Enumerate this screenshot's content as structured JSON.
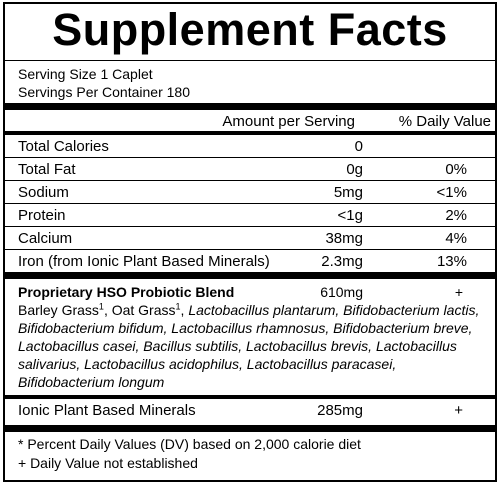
{
  "title": "Supplement Facts",
  "serving_size": "Serving Size 1 Caplet",
  "servings_per_container": "Servings Per Container  180",
  "header": {
    "amount": "Amount per Serving",
    "daily_value": "% Daily Value"
  },
  "rows": [
    {
      "name": "Total Calories",
      "amount": "0",
      "dv": ""
    },
    {
      "name": "Total Fat",
      "amount": "0g",
      "dv": "0%"
    },
    {
      "name": "Sodium",
      "amount": "5mg",
      "dv": "<1%"
    },
    {
      "name": "Protein",
      "amount": "<1g",
      "dv": "2%"
    },
    {
      "name": "Calcium",
      "amount": "38mg",
      "dv": "4%"
    },
    {
      "name": "Iron (from Ionic Plant Based Minerals)",
      "amount": "2.3mg",
      "dv": "13%"
    }
  ],
  "blend": {
    "name": "Proprietary HSO Probiotic Blend",
    "amount": "610mg",
    "dv": "+",
    "ingredients": [
      {
        "text": "Barley Grass",
        "sup": "1"
      },
      {
        "text": ", Oat Grass",
        "sup": "1"
      },
      {
        "text": ", "
      },
      {
        "text": "Lactobacillus plantarum, Bifidobacterium lactis, Bifidobacterium bifidum, Lactobacillus rhamnosus, Bifidobacterium breve, Lactobacillus casei, Bacillus subtilis, Lactobacillus brevis, Lactobacillus salivarius, Lactobacillus acidophilus, Lactobacillus paracasei, Bifidobacterium longum",
        "italic": true
      }
    ]
  },
  "minerals": {
    "name": "Ionic Plant Based Minerals",
    "amount": "285mg",
    "dv": "+"
  },
  "footnotes": [
    "*  Percent Daily Values (DV) based on 2,000 calorie diet",
    "+ Daily Value not established"
  ]
}
